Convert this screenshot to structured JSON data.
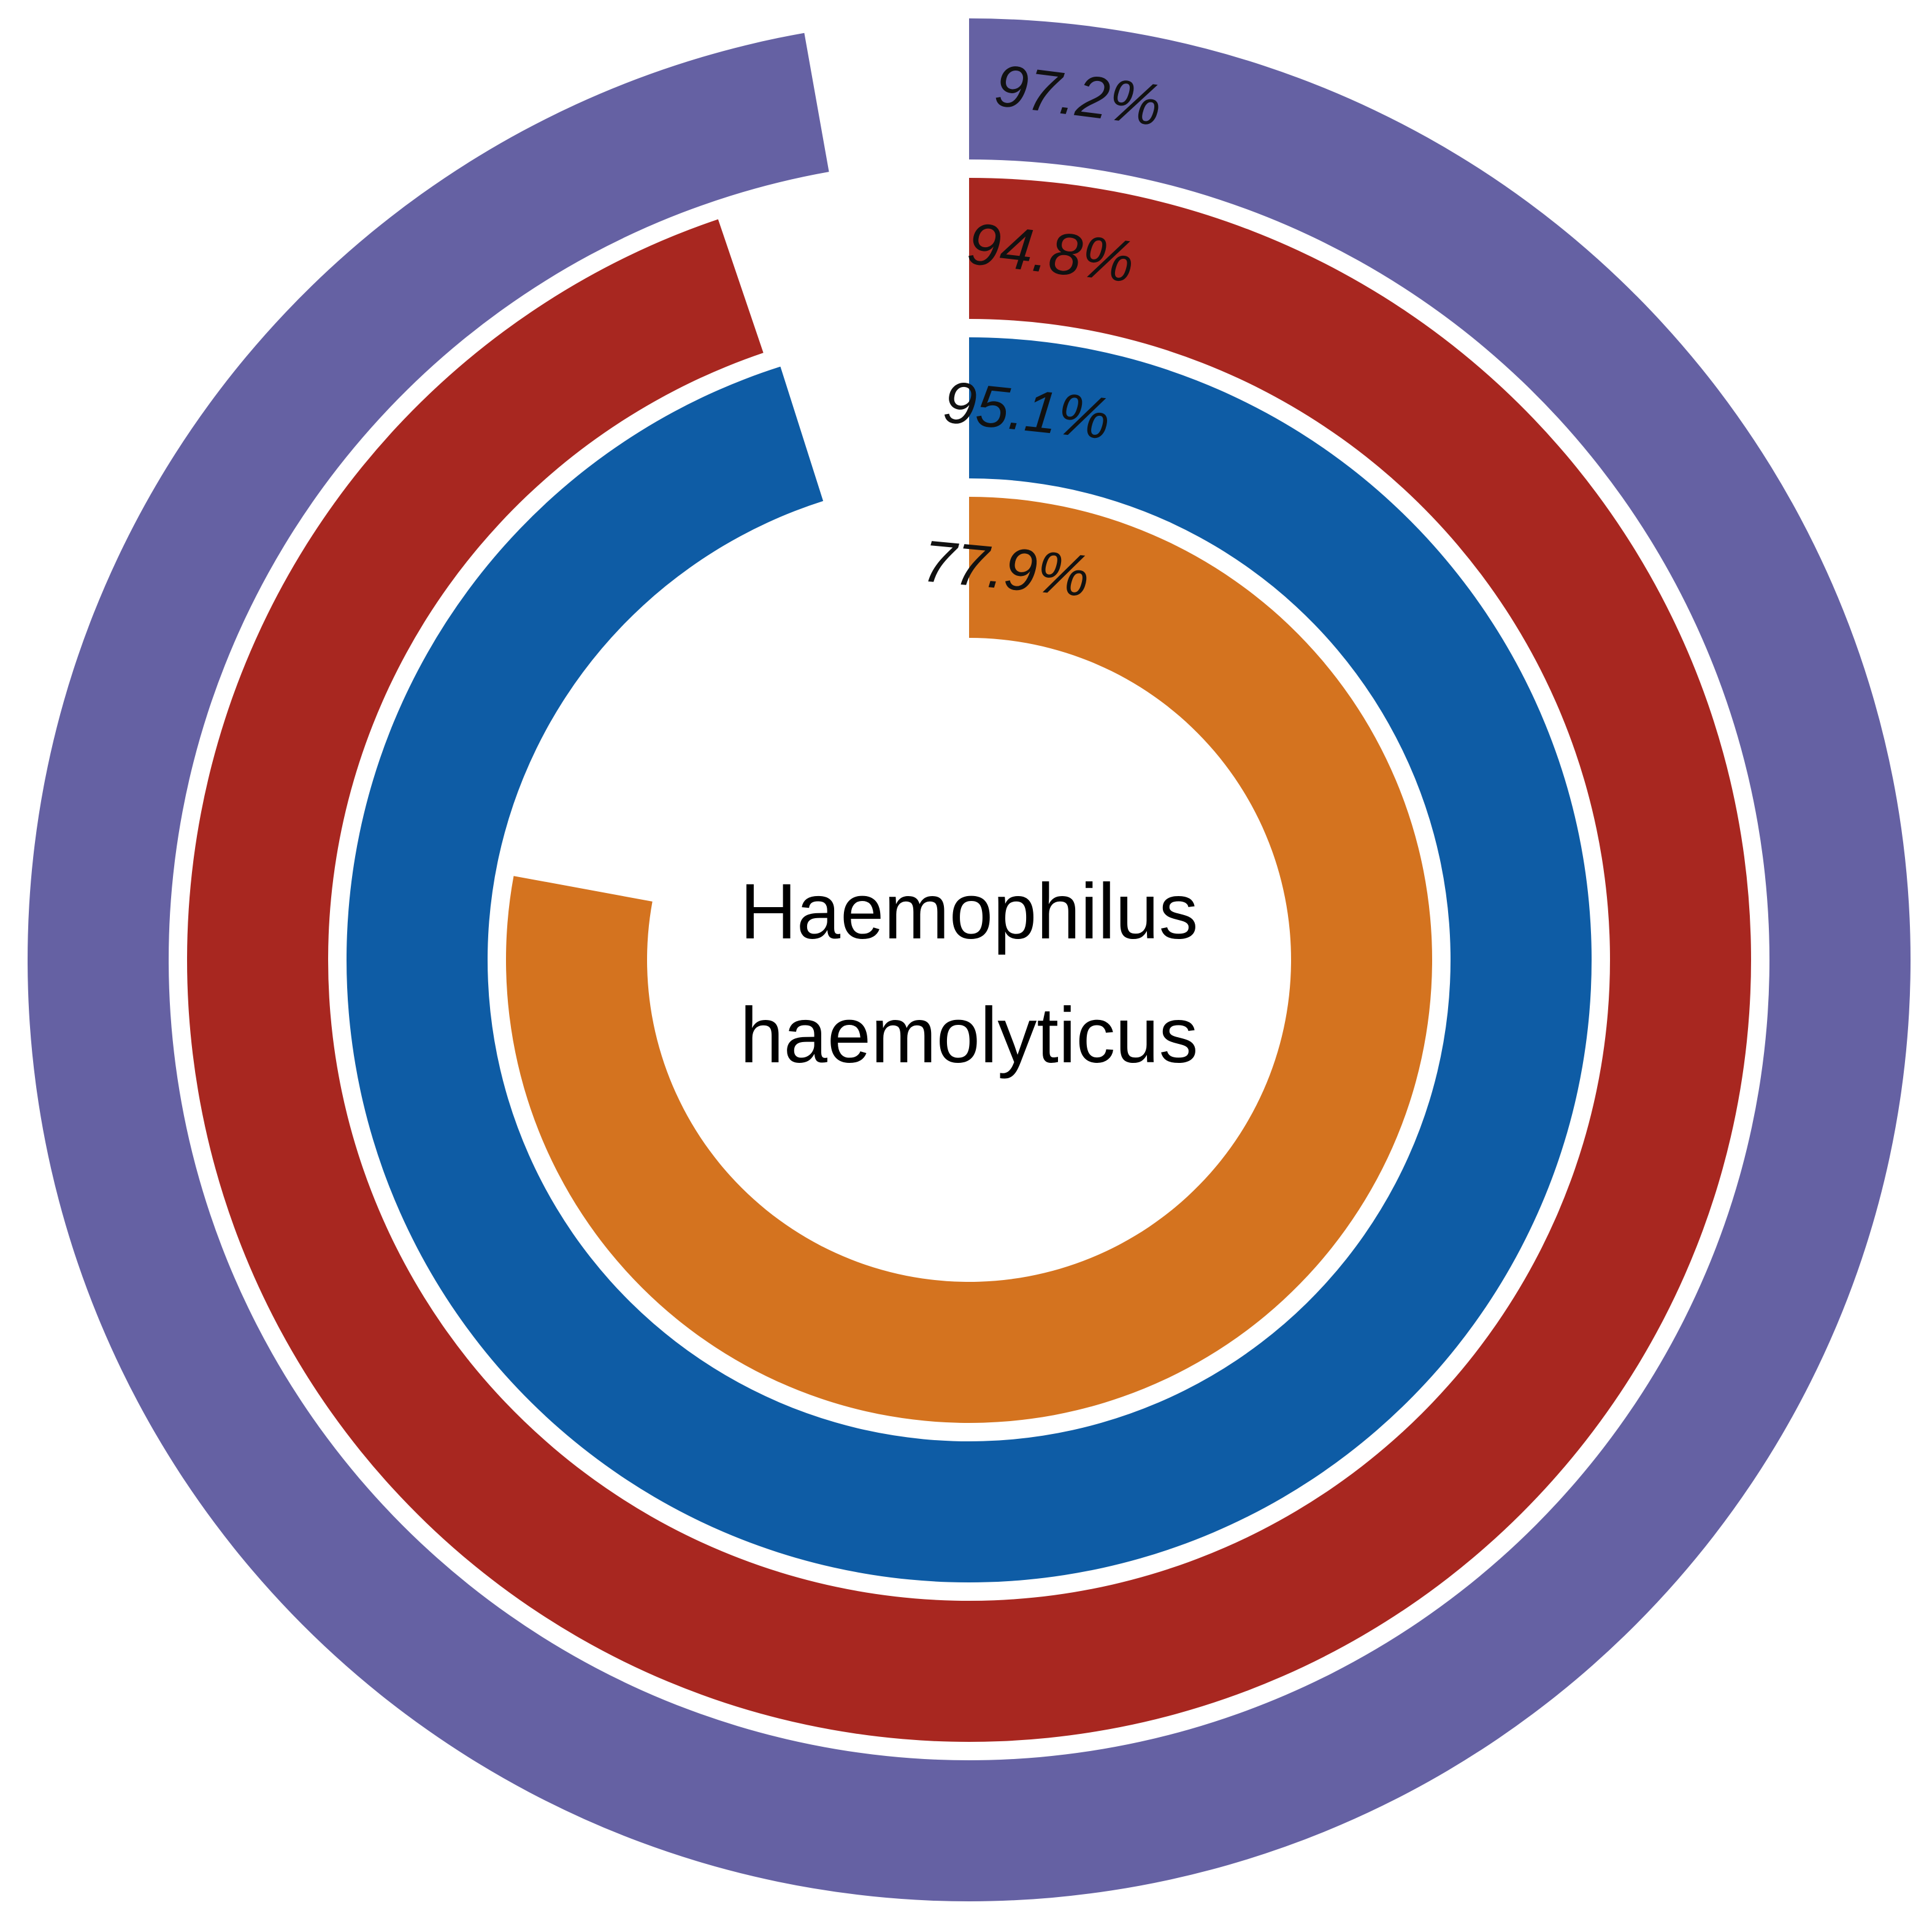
{
  "chart_data": {
    "type": "radial-bar",
    "center_label": {
      "line1": "Haemophilus",
      "line2": "haemolyticus"
    },
    "max_value": 100,
    "series": [
      {
        "value": 97.2,
        "label": "97.2%",
        "color": "#6561a3"
      },
      {
        "value": 94.8,
        "label": "94.8%",
        "color": "#a82720"
      },
      {
        "value": 95.1,
        "label": "95.1%",
        "color": "#0e5ca5"
      },
      {
        "value": 77.9,
        "label": "77.9%",
        "color": "#d4731f"
      }
    ]
  }
}
